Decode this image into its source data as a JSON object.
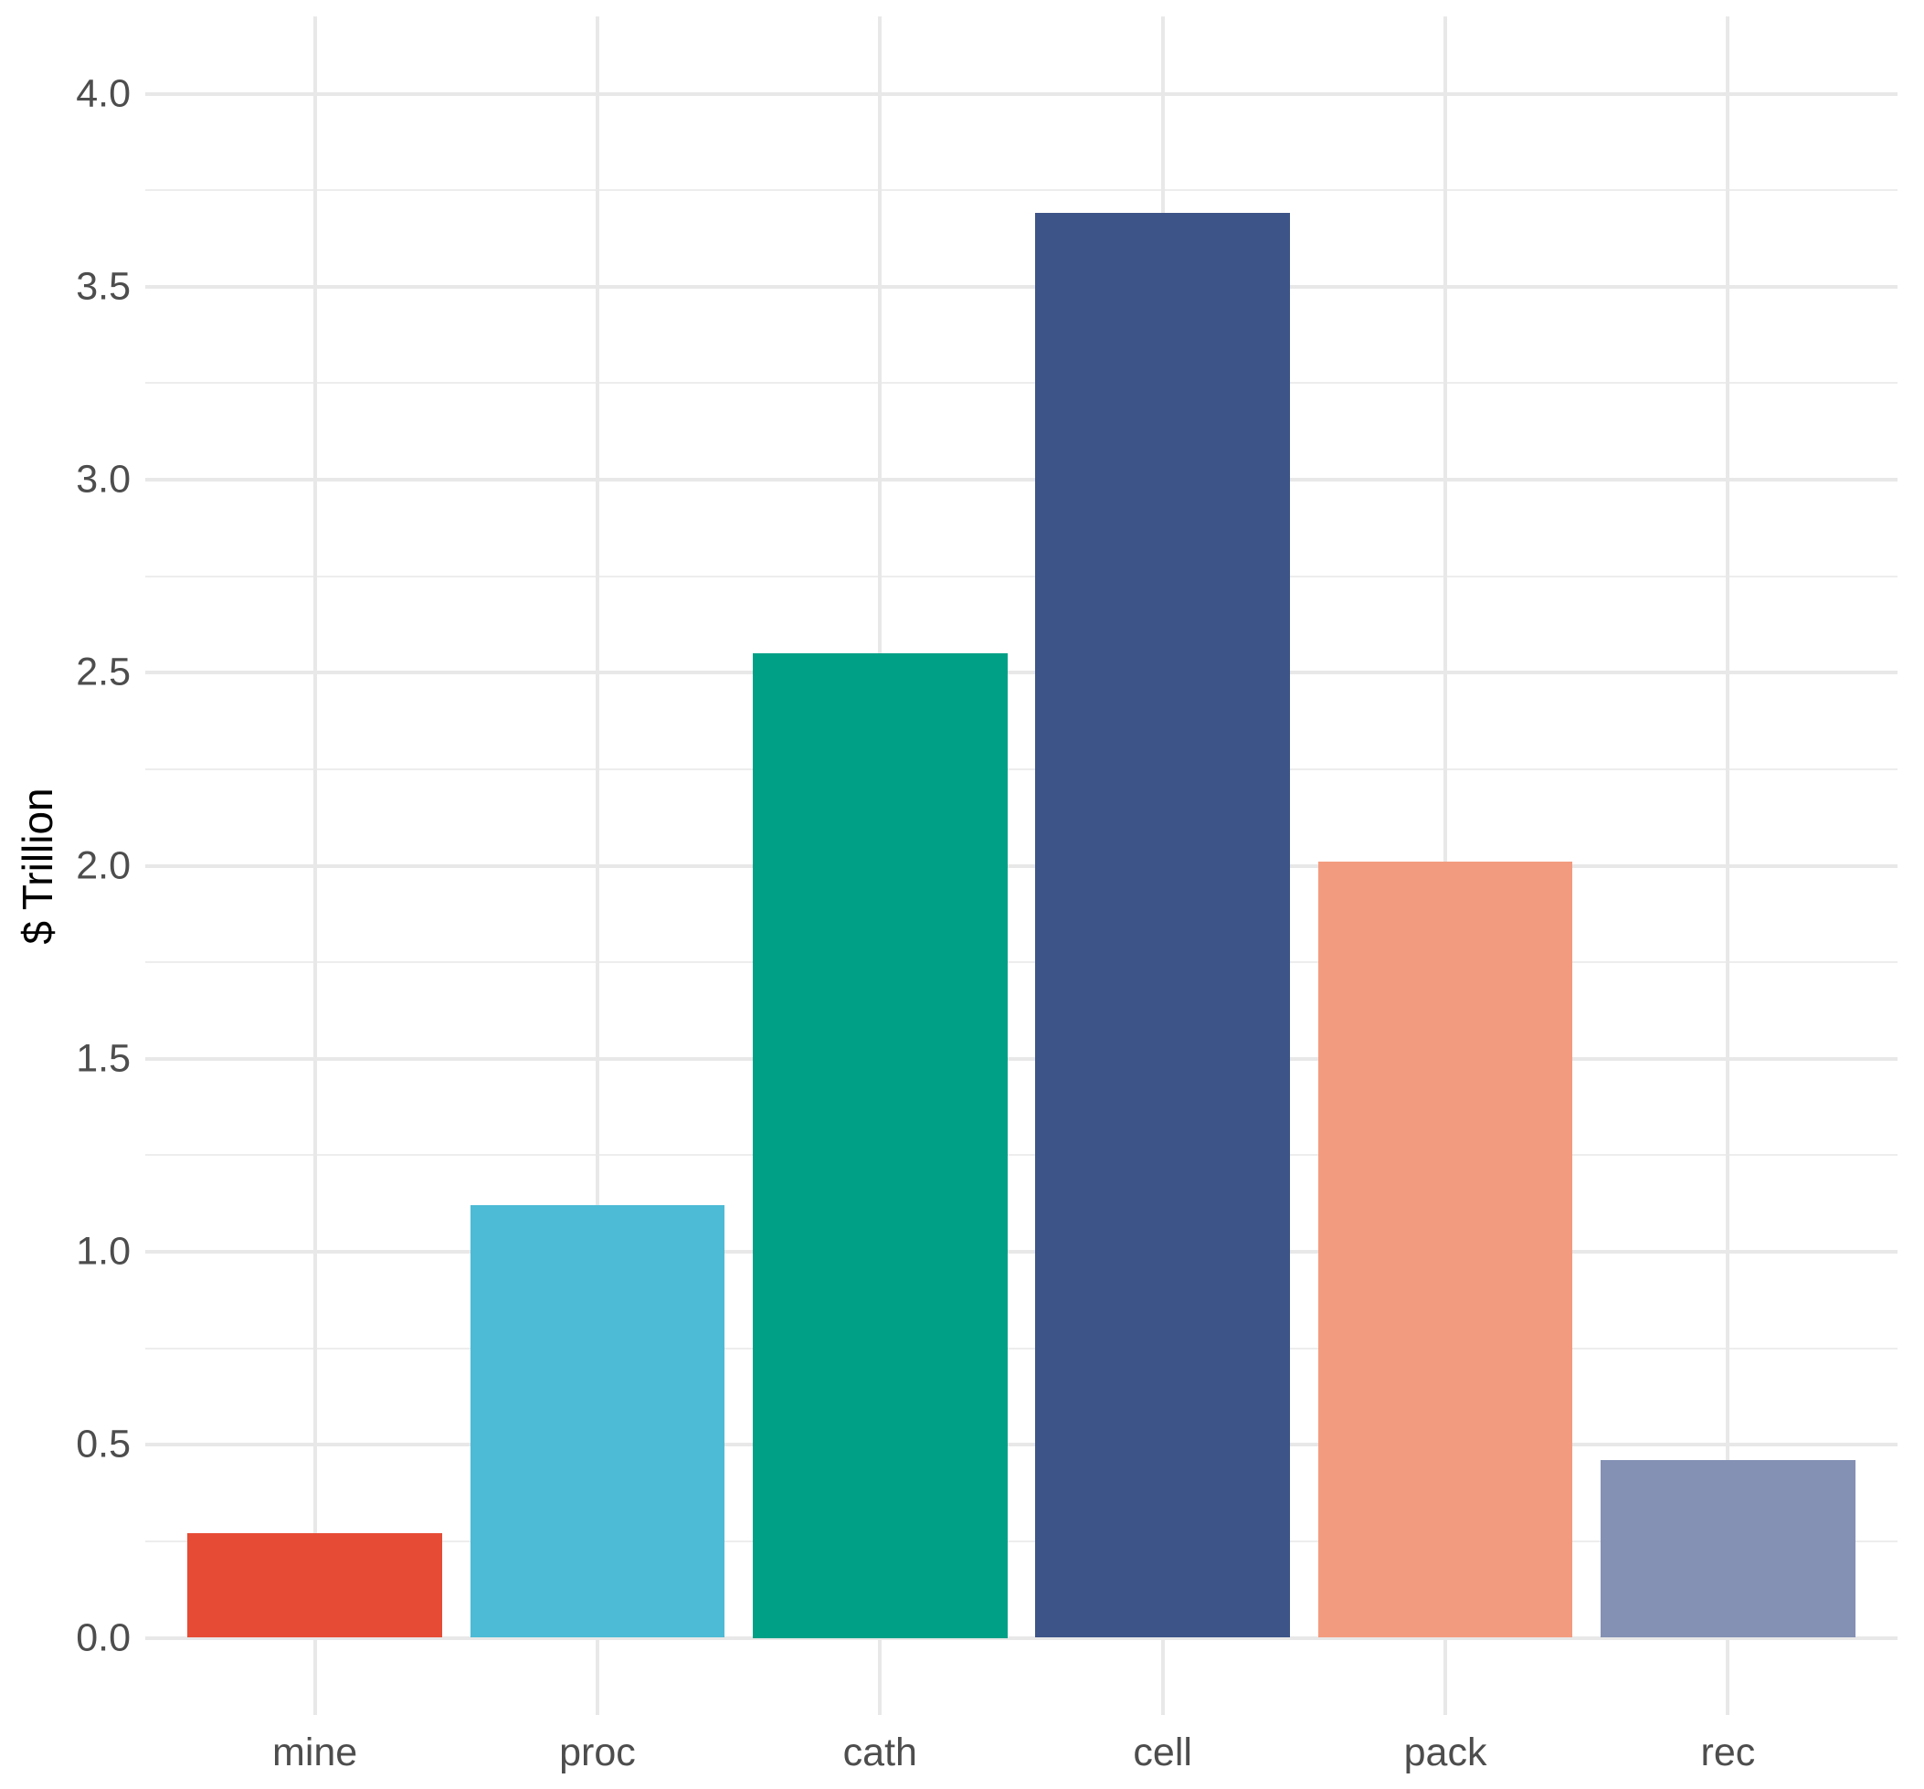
{
  "chart_data": {
    "type": "bar",
    "title": "",
    "categories": [
      "mine",
      "proc",
      "cath",
      "cell",
      "pack",
      "rec"
    ],
    "values": [
      0.27,
      1.12,
      2.55,
      3.69,
      2.01,
      0.46
    ],
    "bar_colors": [
      "#E64B35",
      "#4DBBD5",
      "#00A087",
      "#3C5488",
      "#F39B7F",
      "#8491B4"
    ],
    "xlabel": "",
    "ylabel": "$ Trillion",
    "ylim": [
      0,
      4
    ],
    "y_tick_values": [
      0,
      0.5,
      1,
      1.5,
      2,
      2.5,
      3,
      3.5,
      4
    ],
    "y_tick_labels": [
      "0.0",
      "0.5",
      "1.0",
      "1.5",
      "2.0",
      "2.5",
      "3.0",
      "3.5",
      "4.0"
    ],
    "y_minor_step": 0.25,
    "bar_width_fraction": 0.9,
    "legend": "none",
    "grid": {
      "horizontal": "major-and-minor",
      "vertical": "major-at-category-centers"
    },
    "style": {
      "background": "#FFFFFF",
      "grid_major_color": "#E8E8E8",
      "grid_minor_color": "#EDEDED",
      "tick_label_color": "#4D4D4D",
      "axis_title_color": "#000000"
    }
  }
}
